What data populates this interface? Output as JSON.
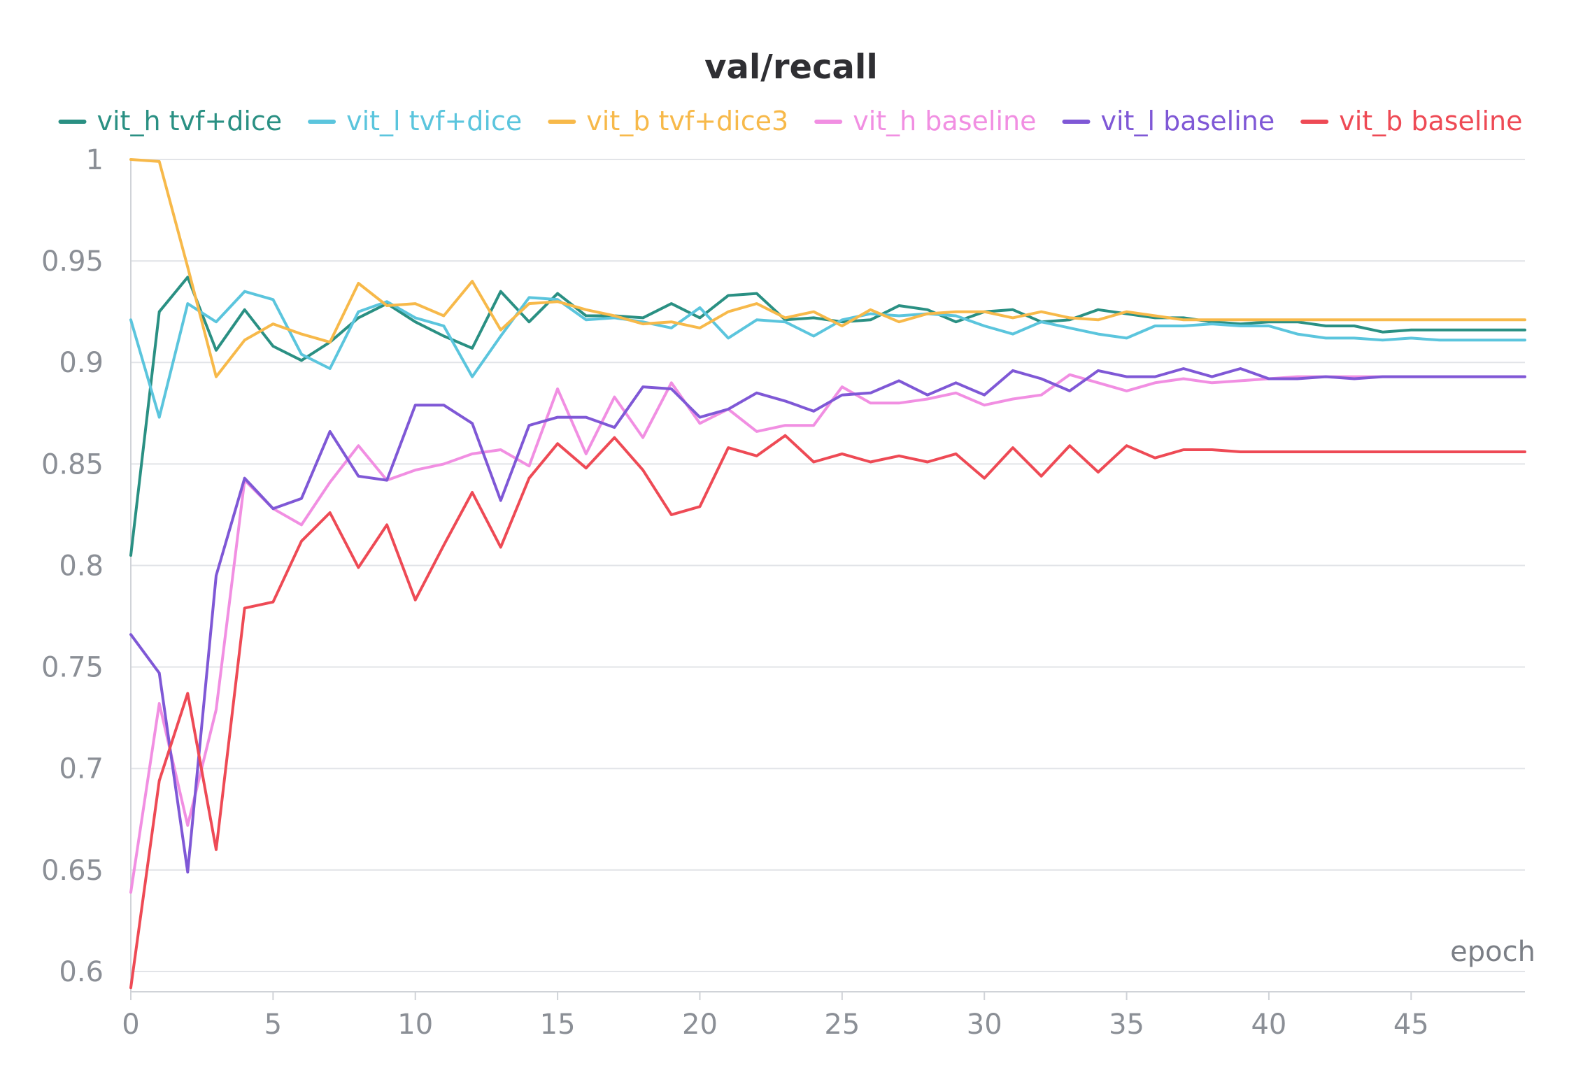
{
  "chart_data": {
    "type": "line",
    "title": "val/recall",
    "xlabel": "epoch",
    "ylabel": "",
    "xlim": [
      0,
      49
    ],
    "ylim": [
      0.59,
      1.0
    ],
    "xticks": [
      0,
      5,
      10,
      15,
      20,
      25,
      30,
      35,
      40,
      45
    ],
    "yticks": [
      0.6,
      0.65,
      0.7,
      0.75,
      0.8,
      0.85,
      0.9,
      0.95,
      1
    ],
    "ytick_labels": [
      "0.6",
      "0.65",
      "0.7",
      "0.75",
      "0.8",
      "0.85",
      "0.9",
      "0.95",
      "1"
    ],
    "grid": true,
    "legend_position": "top",
    "x": [
      0,
      1,
      2,
      3,
      4,
      5,
      6,
      7,
      8,
      9,
      10,
      11,
      12,
      13,
      14,
      15,
      16,
      17,
      18,
      19,
      20,
      21,
      22,
      23,
      24,
      25,
      26,
      27,
      28,
      29,
      30,
      31,
      32,
      33,
      34,
      35,
      36,
      37,
      38,
      39,
      40,
      41,
      42,
      43,
      44,
      45,
      46,
      47,
      48,
      49
    ],
    "series": [
      {
        "name": "vit_h tvf+dice",
        "color": "#2a9083",
        "values": [
          0.805,
          0.925,
          0.942,
          0.906,
          0.926,
          0.908,
          0.901,
          0.91,
          0.922,
          0.929,
          0.92,
          0.913,
          0.907,
          0.935,
          0.92,
          0.934,
          0.923,
          0.923,
          0.922,
          0.929,
          0.922,
          0.933,
          0.934,
          0.921,
          0.922,
          0.92,
          0.921,
          0.928,
          0.926,
          0.92,
          0.925,
          0.926,
          0.92,
          0.921,
          0.926,
          0.924,
          0.922,
          0.922,
          0.92,
          0.919,
          0.92,
          0.92,
          0.918,
          0.918,
          0.915,
          0.916,
          0.916,
          0.916,
          0.916,
          0.916
        ]
      },
      {
        "name": "vit_l tvf+dice",
        "color": "#5bc5dd",
        "values": [
          0.921,
          0.873,
          0.929,
          0.92,
          0.935,
          0.931,
          0.904,
          0.897,
          0.925,
          0.93,
          0.922,
          0.918,
          0.893,
          0.913,
          0.932,
          0.931,
          0.921,
          0.922,
          0.92,
          0.917,
          0.927,
          0.912,
          0.921,
          0.92,
          0.913,
          0.921,
          0.924,
          0.923,
          0.924,
          0.923,
          0.918,
          0.914,
          0.92,
          0.917,
          0.914,
          0.912,
          0.918,
          0.918,
          0.919,
          0.918,
          0.918,
          0.914,
          0.912,
          0.912,
          0.911,
          0.912,
          0.911,
          0.911,
          0.911,
          0.911
        ]
      },
      {
        "name": "vit_b tvf+dice3",
        "color": "#f7b94a",
        "values": [
          1.0,
          0.999,
          0.947,
          0.893,
          0.911,
          0.919,
          0.914,
          0.91,
          0.939,
          0.928,
          0.929,
          0.923,
          0.94,
          0.916,
          0.929,
          0.93,
          0.926,
          0.923,
          0.919,
          0.92,
          0.917,
          0.925,
          0.929,
          0.922,
          0.925,
          0.918,
          0.926,
          0.92,
          0.924,
          0.925,
          0.925,
          0.922,
          0.925,
          0.922,
          0.921,
          0.925,
          0.923,
          0.921,
          0.921,
          0.921,
          0.921,
          0.921,
          0.921,
          0.921,
          0.921,
          0.921,
          0.921,
          0.921,
          0.921,
          0.921
        ]
      },
      {
        "name": "vit_h baseline",
        "color": "#f18fe2",
        "values": [
          0.639,
          0.732,
          0.672,
          0.729,
          0.842,
          0.828,
          0.82,
          0.841,
          0.859,
          0.842,
          0.847,
          0.85,
          0.855,
          0.857,
          0.849,
          0.887,
          0.855,
          0.883,
          0.863,
          0.89,
          0.87,
          0.877,
          0.866,
          0.869,
          0.869,
          0.888,
          0.88,
          0.88,
          0.882,
          0.885,
          0.879,
          0.882,
          0.884,
          0.894,
          0.89,
          0.886,
          0.89,
          0.892,
          0.89,
          0.891,
          0.892,
          0.893,
          0.893,
          0.893,
          0.893,
          0.893,
          0.893,
          0.893,
          0.893,
          0.893
        ]
      },
      {
        "name": "vit_l baseline",
        "color": "#7f58d6",
        "values": [
          0.766,
          0.747,
          0.649,
          0.795,
          0.843,
          0.828,
          0.833,
          0.866,
          0.844,
          0.842,
          0.879,
          0.879,
          0.87,
          0.832,
          0.869,
          0.873,
          0.873,
          0.868,
          0.888,
          0.887,
          0.873,
          0.877,
          0.885,
          0.881,
          0.876,
          0.884,
          0.885,
          0.891,
          0.884,
          0.89,
          0.884,
          0.896,
          0.892,
          0.886,
          0.896,
          0.893,
          0.893,
          0.897,
          0.893,
          0.897,
          0.892,
          0.892,
          0.893,
          0.892,
          0.893,
          0.893,
          0.893,
          0.893,
          0.893,
          0.893
        ]
      },
      {
        "name": "vit_b baseline",
        "color": "#ee4a55",
        "values": [
          0.592,
          0.694,
          0.737,
          0.66,
          0.779,
          0.782,
          0.812,
          0.826,
          0.799,
          0.82,
          0.783,
          0.81,
          0.836,
          0.809,
          0.843,
          0.86,
          0.848,
          0.863,
          0.847,
          0.825,
          0.829,
          0.858,
          0.854,
          0.864,
          0.851,
          0.855,
          0.851,
          0.854,
          0.851,
          0.855,
          0.843,
          0.858,
          0.844,
          0.859,
          0.846,
          0.859,
          0.853,
          0.857,
          0.857,
          0.856,
          0.856,
          0.856,
          0.856,
          0.856,
          0.856,
          0.856,
          0.856,
          0.856,
          0.856,
          0.856
        ]
      }
    ]
  }
}
